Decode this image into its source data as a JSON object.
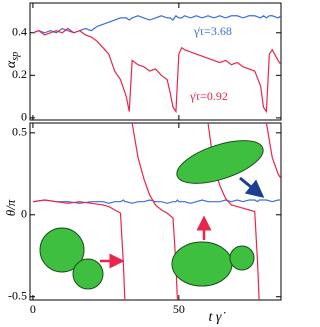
{
  "chart_data": [
    {
      "type": "line",
      "ylabel": "α",
      "ylabel_sub": "sp",
      "annotations": [
        "γ̇τ=3.68",
        "γ̇τ=0.92"
      ],
      "x": [
        0,
        2,
        4,
        6,
        8,
        10,
        12,
        14,
        16,
        18,
        20,
        22,
        24,
        26,
        28,
        30,
        32,
        33,
        34,
        36,
        38,
        40,
        42,
        44,
        46,
        47,
        48,
        49,
        50,
        51,
        52,
        54,
        56,
        58,
        60,
        62,
        64,
        66,
        68,
        70,
        72,
        74,
        76,
        78,
        79,
        80,
        81,
        82,
        84,
        85
      ],
      "xlim": [
        -1,
        85
      ],
      "xticks": [
        0,
        50
      ],
      "ylim": [
        -0.01,
        0.54
      ],
      "yticks": [
        0,
        0.2,
        0.4
      ],
      "series": [
        {
          "name": "γ̇τ=3.68",
          "color": "#3b6fd9",
          "values": [
            0.4,
            0.41,
            0.4,
            0.41,
            0.4,
            0.42,
            0.41,
            0.4,
            0.41,
            0.42,
            0.41,
            0.43,
            0.44,
            0.45,
            0.46,
            0.47,
            0.47,
            0.46,
            0.47,
            0.48,
            0.47,
            0.46,
            0.47,
            0.48,
            0.47,
            0.47,
            0.46,
            0.48,
            0.47,
            0.47,
            0.48,
            0.47,
            0.48,
            0.47,
            0.48,
            0.47,
            0.48,
            0.47,
            0.48,
            0.48,
            0.47,
            0.48,
            0.48,
            0.47,
            0.48,
            0.47,
            0.48,
            0.48,
            0.47,
            0.48
          ]
        },
        {
          "name": "γ̇τ=0.92",
          "color": "#e8264a",
          "values": [
            0.4,
            0.41,
            0.39,
            0.4,
            0.41,
            0.4,
            0.42,
            0.4,
            0.41,
            0.39,
            0.38,
            0.36,
            0.33,
            0.3,
            0.22,
            0.18,
            0.1,
            0.03,
            0.27,
            0.25,
            0.24,
            0.22,
            0.23,
            0.2,
            0.18,
            0.12,
            0.05,
            0.03,
            0.3,
            0.33,
            0.32,
            0.31,
            0.3,
            0.29,
            0.28,
            0.27,
            0.26,
            0.27,
            0.25,
            0.26,
            0.24,
            0.23,
            0.22,
            0.15,
            0.05,
            0.03,
            0.3,
            0.32,
            0.27,
            0.25
          ]
        }
      ]
    },
    {
      "type": "line",
      "ylabel": "θ/π",
      "xlabel": "t γ̇",
      "x": [
        0,
        4,
        8,
        12,
        16,
        20,
        24,
        26,
        28,
        30,
        31,
        31.5,
        32,
        34,
        36,
        38,
        40,
        42,
        44,
        46,
        48,
        49,
        49.5,
        50,
        52,
        54,
        56,
        58,
        60,
        62,
        64,
        66,
        68,
        70,
        72,
        74,
        76,
        77,
        77.5,
        78,
        80,
        82,
        84,
        85
      ],
      "xlim": [
        -1,
        85
      ],
      "xticks": [
        0,
        50
      ],
      "ylim": [
        -0.52,
        0.56
      ],
      "yticks": [
        -0.5,
        0,
        0.5
      ],
      "series": [
        {
          "name": "γ̇τ=3.68",
          "color": "#3b6fd9",
          "values": [
            0.08,
            0.09,
            0.08,
            0.08,
            0.07,
            0.08,
            0.08,
            0.07,
            0.08,
            0.08,
            0.09,
            0.08,
            0.08,
            0.07,
            0.08,
            0.08,
            0.09,
            0.08,
            0.08,
            0.07,
            0.08,
            0.08,
            0.09,
            0.08,
            0.08,
            0.07,
            0.08,
            0.09,
            0.08,
            0.08,
            0.08,
            0.09,
            0.08,
            0.09,
            0.08,
            0.09,
            0.09,
            0.08,
            0.09,
            0.09,
            0.09,
            0.08,
            0.09,
            0.09
          ]
        },
        {
          "name": "γ̇τ=0.92",
          "color": "#e8264a",
          "values": [
            0.08,
            0.09,
            0.08,
            0.07,
            0.08,
            0.07,
            0.06,
            0.05,
            0.03,
            0.01,
            -0.3,
            -0.52,
            null,
            0.56,
            0.35,
            0.22,
            0.12,
            0.06,
            0.03,
            0.01,
            -0.02,
            -0.3,
            -0.52,
            null,
            null,
            null,
            null,
            null,
            0.56,
            0.3,
            0.18,
            0.1,
            0.06,
            0.05,
            0.04,
            0.03,
            0.02,
            -0.3,
            -0.52,
            null,
            0.56,
            0.35,
            0.25,
            0.22
          ]
        }
      ]
    }
  ]
}
